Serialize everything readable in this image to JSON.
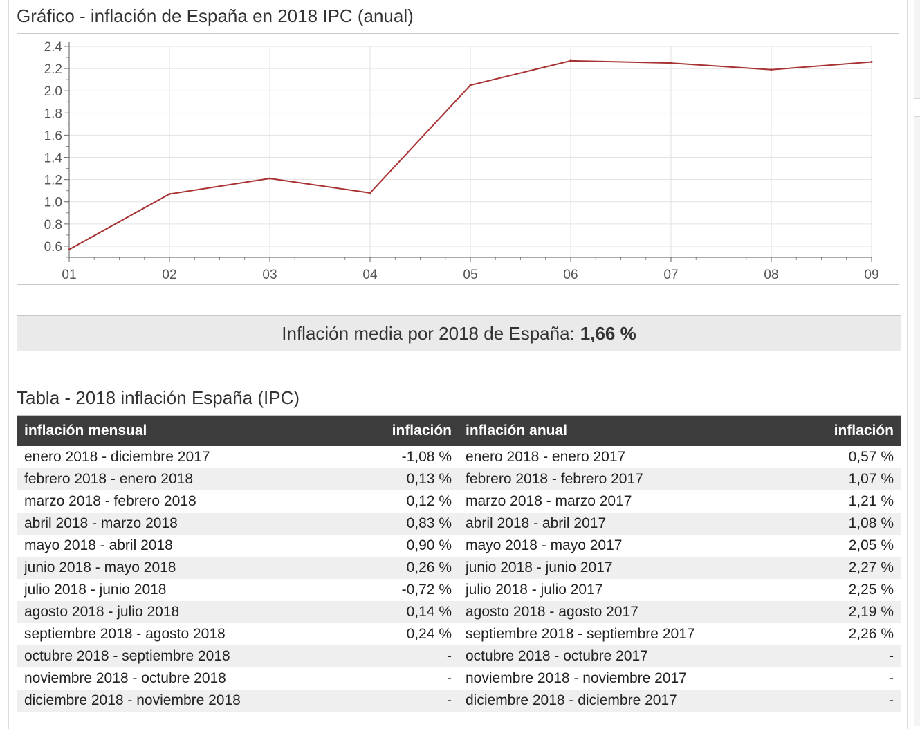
{
  "chart_title": "Gráfico - inflación de España en 2018 IPC (anual)",
  "chart_data": {
    "type": "line",
    "title": "Gráfico - inflación de España en 2018 IPC (anual)",
    "xlabel": "",
    "ylabel": "",
    "categories": [
      "01",
      "02",
      "03",
      "04",
      "05",
      "06",
      "07",
      "08",
      "09"
    ],
    "y_ticks": [
      "0.6",
      "0.8",
      "1.0",
      "1.2",
      "1.4",
      "1.6",
      "1.8",
      "2.0",
      "2.2",
      "2.4"
    ],
    "ylim": [
      0.5,
      2.4
    ],
    "series": [
      {
        "values": [
          0.57,
          1.07,
          1.21,
          1.08,
          2.05,
          2.27,
          2.25,
          2.19,
          2.26
        ]
      }
    ],
    "color": "#a83232",
    "grid": true,
    "legend": "none"
  },
  "average": {
    "label": "Inflación media por 2018 de España:",
    "value": "1,66 %"
  },
  "table_title": "Tabla - 2018 inflación España (IPC)",
  "table": {
    "headers": [
      "inflación mensual",
      "inflación",
      "inflación anual",
      "inflación"
    ],
    "rows": [
      [
        "enero 2018 - diciembre 2017",
        "-1,08 %",
        "enero 2018 - enero 2017",
        "0,57 %"
      ],
      [
        "febrero 2018 - enero 2018",
        "0,13 %",
        "febrero 2018 - febrero 2017",
        "1,07 %"
      ],
      [
        "marzo 2018 - febrero 2018",
        "0,12 %",
        "marzo 2018 - marzo 2017",
        "1,21 %"
      ],
      [
        "abril 2018 - marzo 2018",
        "0,83 %",
        "abril 2018 - abril 2017",
        "1,08 %"
      ],
      [
        "mayo 2018 - abril 2018",
        "0,90 %",
        "mayo 2018 - mayo 2017",
        "2,05 %"
      ],
      [
        "junio 2018 - mayo 2018",
        "0,26 %",
        "junio 2018 - junio 2017",
        "2,27 %"
      ],
      [
        "julio 2018 - junio 2018",
        "-0,72 %",
        "julio 2018 - julio 2017",
        "2,25 %"
      ],
      [
        "agosto 2018 - julio 2018",
        "0,14 %",
        "agosto 2018 - agosto 2017",
        "2,19 %"
      ],
      [
        "septiembre 2018 - agosto 2018",
        "0,24 %",
        "septiembre 2018 - septiembre 2017",
        "2,26 %"
      ],
      [
        "octubre 2018 - septiembre 2018",
        "-",
        "octubre 2018 - octubre 2017",
        "-"
      ],
      [
        "noviembre 2018 - octubre 2018",
        "-",
        "noviembre 2018 - noviembre 2017",
        "-"
      ],
      [
        "diciembre 2018 - noviembre 2018",
        "-",
        "diciembre 2018 - diciembre 2017",
        "-"
      ]
    ]
  }
}
